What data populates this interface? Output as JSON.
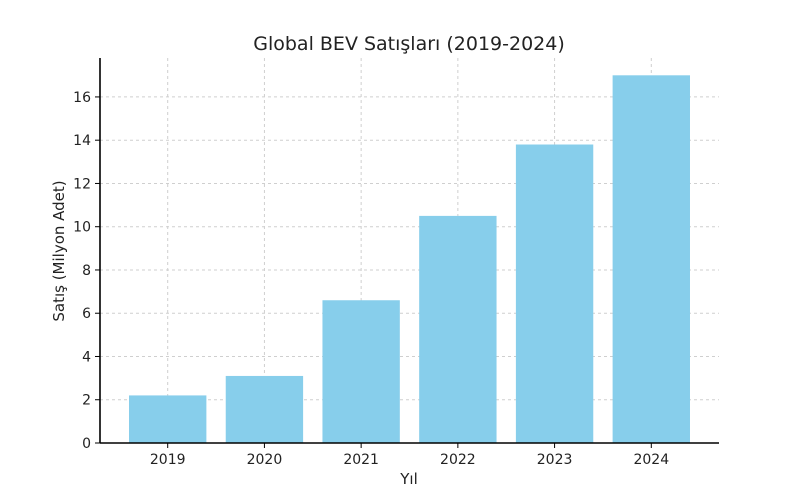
{
  "chart_data": {
    "type": "bar",
    "title": "Global BEV Satışları (2019-2024)",
    "xlabel": "Yıl",
    "ylabel": "Satış (Milyon Adet)",
    "categories": [
      "2019",
      "2020",
      "2021",
      "2022",
      "2023",
      "2024"
    ],
    "values": [
      2.2,
      3.1,
      6.6,
      10.5,
      13.8,
      17.0
    ],
    "ylim": [
      0,
      17.8
    ],
    "yticks": [
      0,
      2,
      4,
      6,
      8,
      10,
      12,
      14,
      16
    ],
    "grid": true,
    "bar_color": "#87ceeb"
  }
}
